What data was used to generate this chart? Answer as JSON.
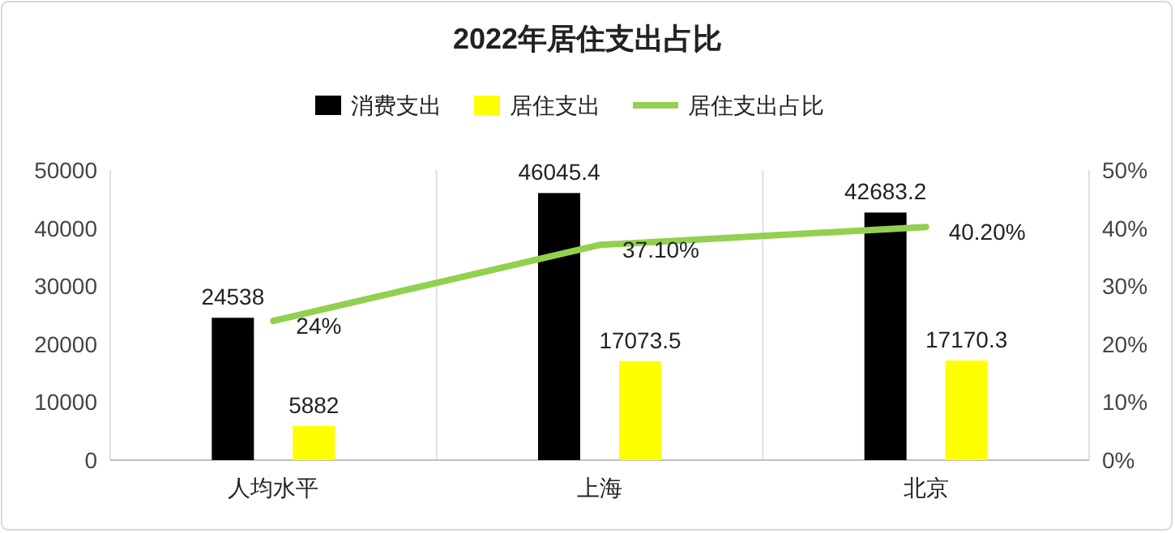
{
  "chart_data": {
    "type": "bar",
    "title": "2022年居住支出占比",
    "categories": [
      "人均水平",
      "上海",
      "北京"
    ],
    "series": [
      {
        "name": "消费支出",
        "color": "#000000",
        "values": [
          24538,
          46045.4,
          42683.2
        ]
      },
      {
        "name": "居住支出",
        "color": "#ffff00",
        "values": [
          5882,
          17073.5,
          17170.3
        ]
      },
      {
        "name": "居住支出占比",
        "color": "#92d050",
        "type": "line",
        "axis": "y2",
        "values": [
          24,
          37.1,
          40.2
        ],
        "value_labels": [
          "24%",
          "37.10%",
          "40.20%"
        ]
      }
    ],
    "ylim": [
      0,
      50000
    ],
    "yticks": [
      0,
      10000,
      20000,
      30000,
      40000,
      50000
    ],
    "y2lim": [
      0,
      50
    ],
    "y2ticks": [
      {
        "value": 0,
        "label": "0%"
      },
      {
        "value": 10,
        "label": "10%"
      },
      {
        "value": 20,
        "label": "20%"
      },
      {
        "value": 30,
        "label": "30%"
      },
      {
        "value": 40,
        "label": "40%"
      },
      {
        "value": 50,
        "label": "50%"
      }
    ],
    "data_labels": true,
    "grid": "x",
    "legend": "top",
    "marker": "none",
    "line_style": "solid"
  }
}
